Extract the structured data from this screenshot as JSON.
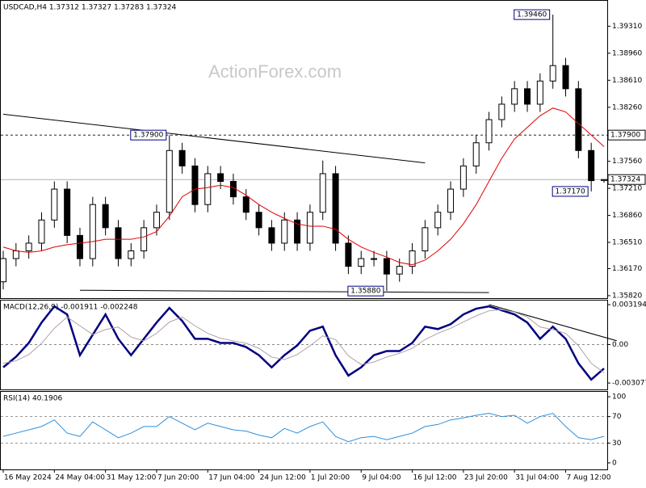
{
  "chart_data": [
    {
      "type": "candlestick",
      "title": "USDCAD,H4  1.37312 1.37327 1.37283 1.37324",
      "watermark": "ActionForex.com",
      "color": "#000000",
      "categories": [
        "16 May 2024",
        null,
        null,
        null,
        "24 May 04:00",
        null,
        null,
        null,
        "31 May 12:00",
        null,
        null,
        null,
        "7 Jun 20:00",
        null,
        null,
        null,
        "17 Jun 04:00",
        null,
        null,
        null,
        "24 Jun 12:00",
        null,
        null,
        null,
        "1 Jul 20:00",
        null,
        null,
        null,
        "9 Jul 04:00",
        null,
        null,
        null,
        "16 Jul 12:00",
        null,
        null,
        null,
        "23 Jul 20:00",
        null,
        null,
        null,
        "31 Jul 04:00",
        null,
        null,
        null,
        "7 Aug 12:00",
        null,
        null,
        null
      ],
      "open": [
        1.36,
        1.363,
        1.364,
        1.365,
        1.368,
        1.372,
        1.366,
        1.363,
        1.37,
        1.367,
        1.363,
        1.364,
        1.367,
        1.369,
        1.377,
        1.375,
        1.37,
        1.374,
        1.373,
        1.371,
        1.369,
        1.367,
        1.365,
        1.368,
        1.365,
        1.369,
        1.374,
        1.365,
        1.362,
        1.363,
        1.363,
        1.361,
        1.362,
        1.364,
        1.367,
        1.369,
        1.372,
        1.375,
        1.378,
        1.381,
        1.383,
        1.385,
        1.383,
        1.386,
        1.388,
        1.385,
        1.377,
        1.37312
      ],
      "high": [
        1.364,
        1.365,
        1.366,
        1.369,
        1.373,
        1.373,
        1.367,
        1.371,
        1.371,
        1.368,
        1.365,
        1.368,
        1.37,
        1.379,
        1.378,
        1.376,
        1.375,
        1.375,
        1.374,
        1.372,
        1.37,
        1.368,
        1.369,
        1.369,
        1.37,
        1.3757,
        1.375,
        1.366,
        1.364,
        1.364,
        1.364,
        1.363,
        1.365,
        1.368,
        1.37,
        1.373,
        1.376,
        1.379,
        1.382,
        1.384,
        1.386,
        1.386,
        1.387,
        1.3946,
        1.389,
        1.386,
        1.378,
        1.37327
      ],
      "low": [
        1.359,
        1.362,
        1.363,
        1.364,
        1.367,
        1.365,
        1.362,
        1.362,
        1.366,
        1.362,
        1.362,
        1.363,
        1.366,
        1.368,
        1.374,
        1.369,
        1.369,
        1.372,
        1.37,
        1.368,
        1.366,
        1.364,
        1.364,
        1.364,
        1.364,
        1.368,
        1.364,
        1.361,
        1.361,
        1.362,
        1.3588,
        1.36,
        1.361,
        1.363,
        1.366,
        1.368,
        1.371,
        1.374,
        1.377,
        1.38,
        1.382,
        1.382,
        1.382,
        1.385,
        1.384,
        1.376,
        1.3717,
        1.37283
      ],
      "close": [
        1.363,
        1.364,
        1.365,
        1.368,
        1.372,
        1.366,
        1.363,
        1.37,
        1.367,
        1.363,
        1.364,
        1.367,
        1.369,
        1.377,
        1.375,
        1.37,
        1.374,
        1.373,
        1.371,
        1.369,
        1.367,
        1.365,
        1.368,
        1.365,
        1.369,
        1.374,
        1.365,
        1.362,
        1.363,
        1.363,
        1.361,
        1.362,
        1.364,
        1.367,
        1.369,
        1.372,
        1.375,
        1.378,
        1.381,
        1.383,
        1.385,
        1.383,
        1.386,
        1.388,
        1.385,
        1.377,
        1.3731,
        1.37324
      ],
      "series": [
        {
          "color": "#e00000",
          "values": [
            1.3645,
            1.364,
            1.3638,
            1.364,
            1.3645,
            1.3648,
            1.365,
            1.3652,
            1.3655,
            1.3655,
            1.3655,
            1.3658,
            1.3665,
            1.3685,
            1.371,
            1.372,
            1.3722,
            1.3725,
            1.3722,
            1.3712,
            1.37,
            1.369,
            1.3682,
            1.3675,
            1.3672,
            1.3672,
            1.3668,
            1.3655,
            1.3645,
            1.3638,
            1.3632,
            1.3625,
            1.3622,
            1.3628,
            1.364,
            1.3655,
            1.3675,
            1.37,
            1.373,
            1.376,
            1.3785,
            1.38,
            1.3815,
            1.3825,
            1.382,
            1.3805,
            1.379,
            1.3775
          ]
        }
      ],
      "trendlines": [
        {
          "from": [
            0,
            1.3817
          ],
          "to": [
            33,
            1.3754
          ]
        },
        {
          "from": [
            6,
            1.3589
          ],
          "to": [
            38,
            1.3586
          ]
        }
      ],
      "levels": [
        {
          "value": 1.379,
          "label": "1.37900",
          "style": "dashed"
        },
        {
          "value": 1.37324,
          "label": "1.37324",
          "style": "solid"
        }
      ],
      "annotations": [
        {
          "index": 43,
          "value": 1.3946,
          "label": "1.39460"
        },
        {
          "index": 13,
          "value": 1.379,
          "label": "1.37900"
        },
        {
          "index": 30,
          "value": 1.3588,
          "label": "1.35880"
        },
        {
          "index": 46,
          "value": 1.3717,
          "label": "1.37170"
        }
      ],
      "ylim": [
        1.35788,
        1.39639
      ],
      "yticks": [
        {
          "value": 1.3931,
          "label": "1.39310"
        },
        {
          "value": 1.3896,
          "label": "1.38960"
        },
        {
          "value": 1.3861,
          "label": "1.38610"
        },
        {
          "value": 1.3826,
          "label": "1.38260"
        },
        {
          "value": 1.3756,
          "label": "1.37560"
        },
        {
          "value": 1.3721,
          "label": "1.37210"
        },
        {
          "value": 1.3686,
          "label": "1.36860"
        },
        {
          "value": 1.3651,
          "label": "1.36510"
        },
        {
          "value": 1.3617,
          "label": "1.36170"
        },
        {
          "value": 1.3582,
          "label": "1.35820"
        }
      ],
      "tick_lines": "none"
    },
    {
      "type": "line",
      "title": "MACD(12,26,9) -0.001911 -0.002248",
      "series": [
        {
          "color": "#000080",
          "width": 2.5,
          "values": [
            -0.00182,
            -0.00098,
            0.00013,
            0.00176,
            0.00306,
            0.00241,
            -0.00085,
            0.00078,
            0.00241,
            0.00046,
            -0.00085,
            0.00046,
            0.00176,
            0.00293,
            0.00189,
            0.00046,
            0.00046,
            0.00013,
            0.00013,
            -0.0002,
            -0.00085,
            -0.00182,
            -0.00085,
            -7e-05,
            0.00111,
            0.00143,
            -0.00085,
            -0.00248,
            -0.00182,
            -0.00085,
            -0.00052,
            -0.00052,
            0.00013,
            0.00143,
            0.00124,
            0.00163,
            0.00241,
            0.00287,
            0.00306,
            0.00274,
            0.00241,
            0.00176,
            0.00046,
            0.00143,
            0.00046,
            -0.0015,
            -0.0028,
            -0.001911
          ]
        },
        {
          "color": "#b0a0a8",
          "width": 1,
          "values": [
            -0.0015,
            -0.0013,
            -0.0008,
            0.0001,
            0.0013,
            0.0022,
            0.0015,
            0.0008,
            0.0012,
            0.0014,
            0.0006,
            0.0003,
            0.0009,
            0.0018,
            0.0022,
            0.0015,
            0.0009,
            0.0005,
            0.0003,
            0.0001,
            -0.0003,
            -0.001,
            -0.0012,
            -0.0008,
            -0.0001,
            0.0007,
            0.0004,
            -0.0009,
            -0.0016,
            -0.0014,
            -0.001,
            -0.0007,
            -0.0003,
            0.0004,
            0.0009,
            0.0013,
            0.0018,
            0.0023,
            0.0027,
            0.0028,
            0.0026,
            0.0022,
            0.0014,
            0.0012,
            0.0009,
            -0.0001,
            -0.0015,
            -0.002248
          ]
        }
      ],
      "trendlines": [
        {
          "from": [
            38,
            0.0032
          ],
          "to": [
            48,
            0.0003
          ]
        }
      ],
      "ylim": [
        -0.00359,
        0.00352
      ],
      "yticks": [
        0.003194,
        {
          "value": 0,
          "label": "0.00"
        },
        -0.003077
      ],
      "tick_lines": "interior"
    },
    {
      "type": "line",
      "title": "RSI(14) 40.1906",
      "series": [
        {
          "color": "#2f8fdc",
          "width": 1,
          "values": [
            40,
            45,
            50,
            55,
            65,
            45,
            40,
            62,
            50,
            38,
            45,
            55,
            55,
            70,
            60,
            50,
            60,
            55,
            50,
            48,
            42,
            38,
            52,
            45,
            55,
            62,
            40,
            32,
            38,
            40,
            35,
            40,
            45,
            55,
            58,
            65,
            68,
            72,
            75,
            70,
            72,
            60,
            70,
            75,
            55,
            38,
            35,
            40.1906
          ]
        }
      ],
      "ylim": [
        -9.9,
        107.4
      ],
      "yticks": [
        100,
        70,
        30,
        0
      ],
      "tick_lines": "interior"
    }
  ]
}
